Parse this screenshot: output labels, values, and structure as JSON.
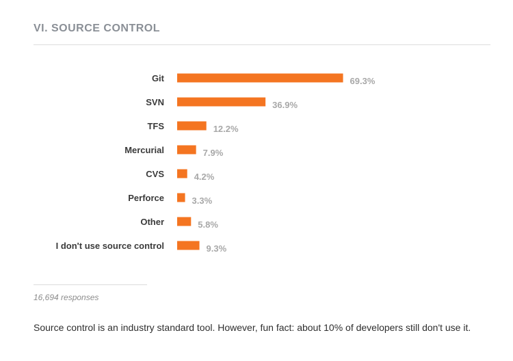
{
  "section": {
    "title": "VI. SOURCE CONTROL"
  },
  "chart_data": {
    "type": "bar",
    "orientation": "horizontal",
    "categories": [
      "Git",
      "SVN",
      "TFS",
      "Mercurial",
      "CVS",
      "Perforce",
      "Other",
      "I don't use source control"
    ],
    "values": [
      69.3,
      36.9,
      12.2,
      7.9,
      4.2,
      3.3,
      5.8,
      9.3
    ],
    "value_labels": [
      "69.3%",
      "36.9%",
      "12.2%",
      "7.9%",
      "4.2%",
      "3.3%",
      "5.8%",
      "9.3%"
    ],
    "unit": "%",
    "xlim": [
      0,
      100
    ],
    "bar_color": "#f47521",
    "grid": false,
    "legend": "none"
  },
  "footer": {
    "responses": "16,694 responses",
    "note": "Source control is an industry standard tool. However, fun fact: about 10% of developers still don't use it."
  }
}
